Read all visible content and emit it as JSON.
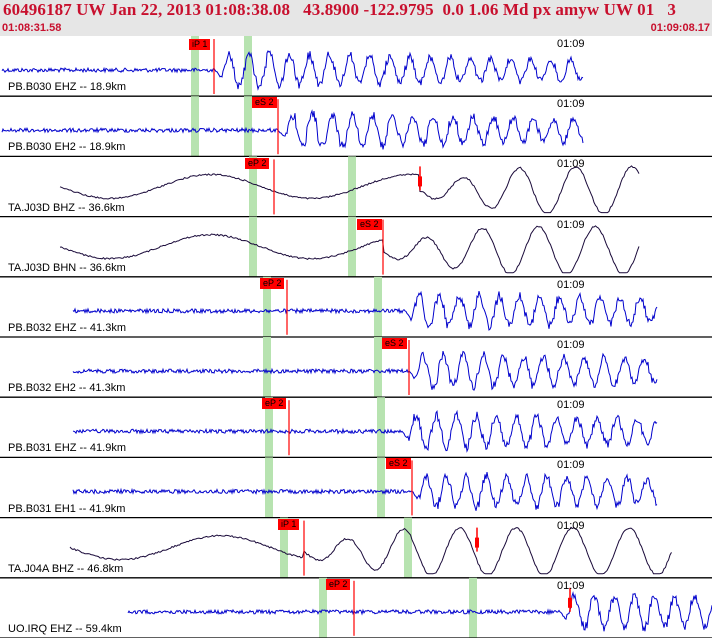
{
  "header": {
    "title": "60496187 UW Jan 22, 2013 01:08:38.08   43.8900 -122.9795  0.0 1.06 Md px amyw UW 01   3",
    "time_start": "01:08:31.58",
    "time_end": "01:09:08.17"
  },
  "colors": {
    "header_text": "#c8102e",
    "header_bg": "#e6e6e6",
    "trace_primary": "#0000cc",
    "trace_alt": "#1a0a3a",
    "pick_window": "#b7e3b0",
    "pick_flag": "#ff0000",
    "pick_line": "#ff0000",
    "separator": "#000000"
  },
  "panels": [
    {
      "label": "PB.B030 EHZ -- 18.9km",
      "time_label": "01:09",
      "trace_color": "blue",
      "amp": "large",
      "picks": [
        {
          "text": "iP 1"
        }
      ]
    },
    {
      "label": "PB.B030 EH2 -- 18.9km",
      "time_label": "01:09",
      "trace_color": "blue",
      "amp": "large",
      "picks": [
        {
          "text": "eS 2"
        }
      ]
    },
    {
      "label": "TA.J03D BHZ -- 36.6km",
      "time_label": "01:09",
      "trace_color": "black",
      "amp": "long",
      "picks": [
        {
          "text": "eP 2"
        }
      ]
    },
    {
      "label": "TA.J03D BHN -- 36.6km",
      "time_label": "01:09",
      "trace_color": "black",
      "amp": "long",
      "picks": [
        {
          "text": "eS 2"
        }
      ]
    },
    {
      "label": "PB.B032 EHZ -- 41.3km",
      "time_label": "01:09",
      "trace_color": "blue",
      "amp": "large",
      "picks": [
        {
          "text": "eP 2"
        }
      ]
    },
    {
      "label": "PB.B032 EH2 -- 41.3km",
      "time_label": "01:09",
      "trace_color": "blue",
      "amp": "large",
      "picks": [
        {
          "text": "eS 2"
        }
      ]
    },
    {
      "label": "PB.B031 EHZ -- 41.9km",
      "time_label": "01:09",
      "trace_color": "blue",
      "amp": "large",
      "picks": [
        {
          "text": "eP 2"
        }
      ]
    },
    {
      "label": "PB.B031 EH1 -- 41.9km",
      "time_label": "01:09",
      "trace_color": "blue",
      "amp": "large",
      "picks": [
        {
          "text": "eS 2"
        }
      ]
    },
    {
      "label": "TA.J04A BHZ -- 46.8km",
      "time_label": "01:09",
      "trace_color": "black",
      "amp": "long",
      "picks": [
        {
          "text": "iP 1"
        }
      ]
    },
    {
      "label": "UO.IRQ EHZ -- 59.4km",
      "time_label": "01:09",
      "trace_color": "blue",
      "amp": "large",
      "picks": [
        {
          "text": "eP 2"
        }
      ]
    }
  ]
}
